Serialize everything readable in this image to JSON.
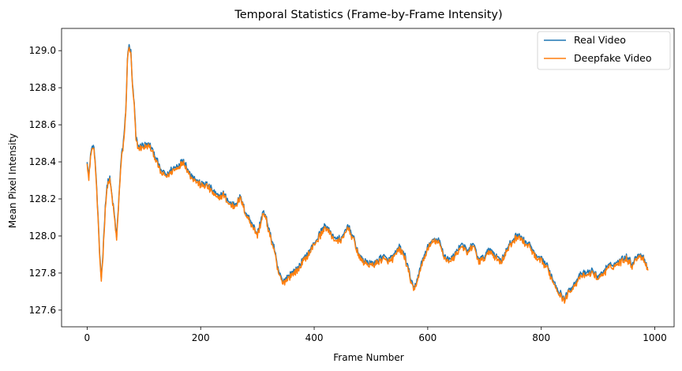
{
  "chart_data": {
    "type": "line",
    "title": "Temporal Statistics (Frame-by-Frame Intensity)",
    "xlabel": "Frame Number",
    "ylabel": "Mean Pixel Intensity",
    "xlim": [
      -45,
      1034
    ],
    "ylim": [
      127.51,
      129.12
    ],
    "x_ticks": [
      0,
      200,
      400,
      600,
      800,
      1000
    ],
    "y_ticks": [
      127.6,
      127.8,
      128.0,
      128.2,
      128.4,
      128.6,
      128.8,
      129.0
    ],
    "legend_position": "top-right",
    "legend": [
      "Real Video",
      "Deepfake Video"
    ],
    "frame_count": 989,
    "anchors": [
      [
        0,
        128.4
      ],
      [
        3,
        128.3
      ],
      [
        6,
        128.43
      ],
      [
        10,
        128.48
      ],
      [
        13,
        128.44
      ],
      [
        16,
        128.3
      ],
      [
        19,
        128.1
      ],
      [
        22,
        127.9
      ],
      [
        25,
        127.76
      ],
      [
        28,
        127.9
      ],
      [
        32,
        128.15
      ],
      [
        36,
        128.28
      ],
      [
        40,
        128.3
      ],
      [
        44,
        128.2
      ],
      [
        48,
        128.1
      ],
      [
        52,
        127.98
      ],
      [
        56,
        128.2
      ],
      [
        60,
        128.4
      ],
      [
        64,
        128.5
      ],
      [
        68,
        128.65
      ],
      [
        71,
        128.95
      ],
      [
        74,
        129.02
      ],
      [
        77,
        128.98
      ],
      [
        80,
        128.8
      ],
      [
        83,
        128.7
      ],
      [
        86,
        128.52
      ],
      [
        90,
        128.47
      ],
      [
        100,
        128.48
      ],
      [
        110,
        128.48
      ],
      [
        120,
        128.42
      ],
      [
        130,
        128.34
      ],
      [
        140,
        128.32
      ],
      [
        150,
        128.35
      ],
      [
        160,
        128.37
      ],
      [
        170,
        128.4
      ],
      [
        180,
        128.33
      ],
      [
        190,
        128.3
      ],
      [
        200,
        128.27
      ],
      [
        210,
        128.27
      ],
      [
        220,
        128.24
      ],
      [
        230,
        128.2
      ],
      [
        240,
        128.22
      ],
      [
        250,
        128.17
      ],
      [
        260,
        128.16
      ],
      [
        270,
        128.2
      ],
      [
        280,
        128.11
      ],
      [
        290,
        128.06
      ],
      [
        300,
        128.0
      ],
      [
        305,
        128.06
      ],
      [
        310,
        128.12
      ],
      [
        315,
        128.09
      ],
      [
        320,
        128.03
      ],
      [
        325,
        127.97
      ],
      [
        330,
        127.92
      ],
      [
        335,
        127.82
      ],
      [
        340,
        127.78
      ],
      [
        345,
        127.74
      ],
      [
        350,
        127.76
      ],
      [
        360,
        127.79
      ],
      [
        370,
        127.81
      ],
      [
        380,
        127.86
      ],
      [
        390,
        127.9
      ],
      [
        400,
        127.95
      ],
      [
        410,
        128.0
      ],
      [
        420,
        128.05
      ],
      [
        430,
        128.0
      ],
      [
        440,
        127.97
      ],
      [
        450,
        127.98
      ],
      [
        460,
        128.05
      ],
      [
        470,
        127.97
      ],
      [
        480,
        127.88
      ],
      [
        490,
        127.85
      ],
      [
        500,
        127.84
      ],
      [
        510,
        127.85
      ],
      [
        520,
        127.88
      ],
      [
        530,
        127.86
      ],
      [
        540,
        127.88
      ],
      [
        550,
        127.93
      ],
      [
        560,
        127.88
      ],
      [
        570,
        127.76
      ],
      [
        575,
        127.7
      ],
      [
        580,
        127.74
      ],
      [
        590,
        127.85
      ],
      [
        600,
        127.93
      ],
      [
        610,
        127.97
      ],
      [
        620,
        127.96
      ],
      [
        630,
        127.88
      ],
      [
        640,
        127.86
      ],
      [
        650,
        127.9
      ],
      [
        660,
        127.95
      ],
      [
        670,
        127.9
      ],
      [
        680,
        127.95
      ],
      [
        690,
        127.86
      ],
      [
        700,
        127.88
      ],
      [
        710,
        127.92
      ],
      [
        720,
        127.88
      ],
      [
        730,
        127.86
      ],
      [
        740,
        127.92
      ],
      [
        750,
        127.97
      ],
      [
        760,
        128.0
      ],
      [
        770,
        127.96
      ],
      [
        780,
        127.94
      ],
      [
        790,
        127.88
      ],
      [
        800,
        127.86
      ],
      [
        810,
        127.83
      ],
      [
        820,
        127.76
      ],
      [
        830,
        127.7
      ],
      [
        840,
        127.65
      ],
      [
        850,
        127.7
      ],
      [
        860,
        127.74
      ],
      [
        870,
        127.78
      ],
      [
        880,
        127.79
      ],
      [
        890,
        127.8
      ],
      [
        900,
        127.77
      ],
      [
        910,
        127.8
      ],
      [
        920,
        127.83
      ],
      [
        930,
        127.84
      ],
      [
        940,
        127.86
      ],
      [
        950,
        127.88
      ],
      [
        960,
        127.84
      ],
      [
        970,
        127.89
      ],
      [
        980,
        127.88
      ],
      [
        988,
        127.81
      ]
    ],
    "series": [
      {
        "name": "Real Video",
        "color": "#1f77b4",
        "offset": 0.012,
        "noise": 0.018
      },
      {
        "name": "Deepfake Video",
        "color": "#ff7f0e",
        "offset": 0.0,
        "noise": 0.02
      }
    ]
  }
}
